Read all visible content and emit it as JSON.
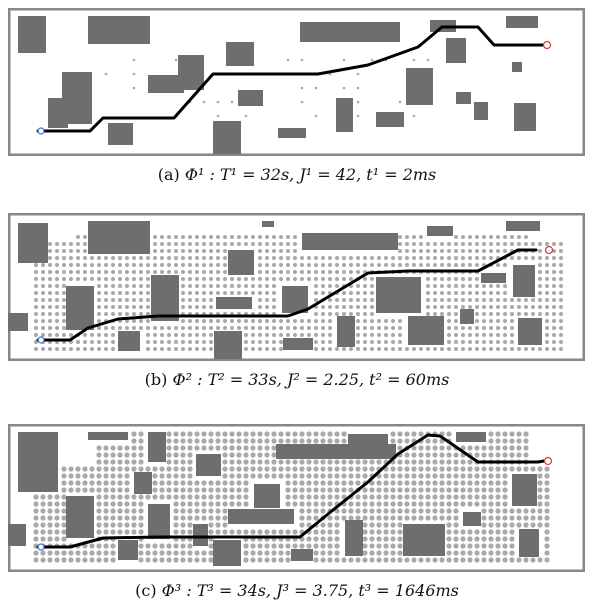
{
  "panels": [
    {
      "label": "(a)",
      "formula": "Φ¹ : T¹ = 32s, J¹ = 42, t¹ = 2ms",
      "search_style": "sparse"
    },
    {
      "label": "(b)",
      "formula": "Φ² : T² = 33s, J² = 2.25, t² = 60ms",
      "search_style": "medium"
    },
    {
      "label": "(c)",
      "formula": "Φ³ : T³ = 34s, J³ = 3.75, t³ = 1646ms",
      "search_style": "dense"
    }
  ],
  "colors": {
    "obstacle": "#6e6e6e",
    "border": "#888888",
    "path": "#000000",
    "expanded_nodes": "#9a9a9a",
    "start_marker": "#3b6fd6",
    "goal_marker": "#d33a3a"
  }
}
